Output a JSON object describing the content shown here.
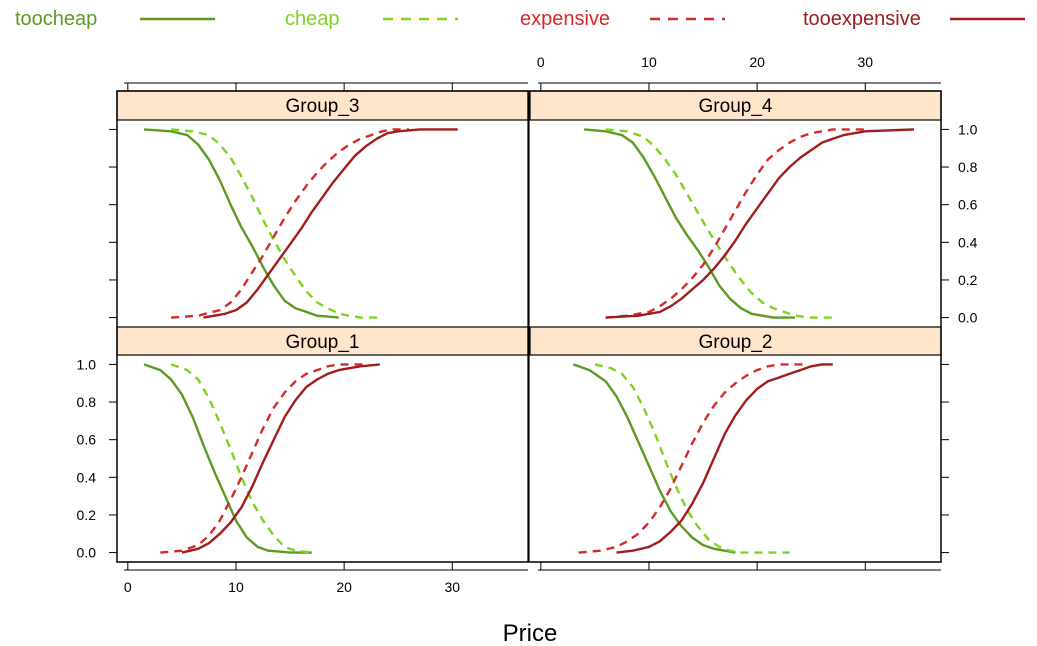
{
  "chart_data": {
    "type": "line",
    "xlabel": "Price",
    "ylabel": "",
    "xlim": [
      -1,
      37
    ],
    "ylim": [
      -0.05,
      1.05
    ],
    "x_ticks": [
      0,
      10,
      20,
      30
    ],
    "y_ticks": [
      0.0,
      0.2,
      0.4,
      0.6,
      0.8,
      1.0
    ],
    "y_tick_labels": [
      "0.0",
      "0.2",
      "0.4",
      "0.6",
      "0.8",
      "1.0"
    ],
    "legend_position": "top",
    "series": [
      {
        "name": "toocheap",
        "color": "#5c9a22",
        "dash": "solid"
      },
      {
        "name": "cheap",
        "color": "#7ed321",
        "dash": "dashed"
      },
      {
        "name": "expensive",
        "color": "#d42a2a",
        "dash": "dashed"
      },
      {
        "name": "tooexpensive",
        "color": "#a11d1d",
        "dash": "solid"
      }
    ],
    "panels": [
      {
        "title": "Group_3",
        "lines": [
          {
            "series": "toocheap",
            "x": [
              1.5,
              4,
              5.5,
              6.5,
              7.5,
              8.5,
              9.5,
              10.5,
              11.5,
              12.5,
              13.5,
              14.5,
              15.5,
              16.5,
              17.5,
              18.5,
              19.5
            ],
            "y": [
              1.0,
              0.99,
              0.97,
              0.92,
              0.84,
              0.73,
              0.6,
              0.48,
              0.38,
              0.27,
              0.17,
              0.09,
              0.05,
              0.03,
              0.01,
              0.005,
              0.0
            ]
          },
          {
            "series": "cheap",
            "x": [
              4,
              6,
              7.5,
              8.5,
              9.5,
              10.5,
              11.5,
              12.5,
              13.5,
              14.5,
              15.5,
              16.5,
              17.5,
              18.5,
              19.5,
              20.5,
              21.5,
              23.5
            ],
            "y": [
              1.0,
              0.99,
              0.97,
              0.92,
              0.85,
              0.75,
              0.64,
              0.52,
              0.41,
              0.31,
              0.22,
              0.14,
              0.08,
              0.05,
              0.02,
              0.01,
              0.0,
              0.0
            ]
          },
          {
            "series": "expensive",
            "x": [
              4,
              6.5,
              8.5,
              9.5,
              10.5,
              11.5,
              12.5,
              13.5,
              14.5,
              15.5,
              16.5,
              17.5,
              18.5,
              19.5,
              20.5,
              21.5,
              22.5,
              23.5,
              24.5,
              26
            ],
            "y": [
              0.0,
              0.01,
              0.04,
              0.08,
              0.15,
              0.24,
              0.33,
              0.43,
              0.53,
              0.62,
              0.7,
              0.77,
              0.83,
              0.88,
              0.92,
              0.95,
              0.97,
              0.99,
              1.0,
              1.0
            ]
          },
          {
            "series": "tooexpensive",
            "x": [
              7,
              8,
              9,
              10,
              11,
              12,
              13,
              14,
              15,
              16,
              17,
              18,
              19,
              20,
              21,
              22,
              23,
              24,
              25,
              27,
              30.5
            ],
            "y": [
              0.0,
              0.01,
              0.02,
              0.04,
              0.08,
              0.15,
              0.23,
              0.31,
              0.39,
              0.47,
              0.56,
              0.64,
              0.72,
              0.79,
              0.86,
              0.91,
              0.95,
              0.98,
              0.99,
              1.0,
              1.0
            ]
          }
        ]
      },
      {
        "title": "Group_4",
        "lines": [
          {
            "series": "toocheap",
            "x": [
              4,
              6,
              7.5,
              8.5,
              9.5,
              10.5,
              11.5,
              12.5,
              13.5,
              14.5,
              15.5,
              16.5,
              17.5,
              18.5,
              19.5,
              20.5,
              21.5,
              23.5
            ],
            "y": [
              1.0,
              0.99,
              0.97,
              0.93,
              0.85,
              0.75,
              0.64,
              0.53,
              0.44,
              0.36,
              0.27,
              0.17,
              0.1,
              0.05,
              0.02,
              0.01,
              0.0,
              0.0
            ]
          },
          {
            "series": "cheap",
            "x": [
              6,
              8,
              9.5,
              10.5,
              11.5,
              12.5,
              13.5,
              14.5,
              15.5,
              16.5,
              17.5,
              18.5,
              19.5,
              20.5,
              21.5,
              22.5,
              23.5,
              25,
              27
            ],
            "y": [
              1.0,
              0.99,
              0.96,
              0.91,
              0.84,
              0.76,
              0.66,
              0.56,
              0.46,
              0.37,
              0.28,
              0.2,
              0.13,
              0.08,
              0.05,
              0.03,
              0.01,
              0.0,
              0.0
            ]
          },
          {
            "series": "expensive",
            "x": [
              6,
              8,
              10,
              11,
              12,
              13,
              14,
              15,
              16,
              17,
              18,
              19,
              20,
              21,
              22,
              23,
              24,
              25,
              26,
              27,
              28,
              30
            ],
            "y": [
              0.0,
              0.01,
              0.03,
              0.06,
              0.1,
              0.15,
              0.21,
              0.28,
              0.37,
              0.47,
              0.57,
              0.67,
              0.76,
              0.84,
              0.89,
              0.93,
              0.96,
              0.98,
              0.99,
              1.0,
              1.0,
              1.0
            ]
          },
          {
            "series": "tooexpensive",
            "x": [
              6,
              9,
              11,
              12,
              13,
              14,
              15,
              16,
              17,
              18,
              19,
              20,
              21,
              22,
              23,
              24,
              25,
              26,
              27,
              28,
              30,
              34.5
            ],
            "y": [
              0.0,
              0.01,
              0.03,
              0.06,
              0.1,
              0.15,
              0.2,
              0.26,
              0.33,
              0.41,
              0.5,
              0.58,
              0.66,
              0.74,
              0.8,
              0.85,
              0.89,
              0.93,
              0.95,
              0.97,
              0.99,
              1.0
            ]
          }
        ]
      },
      {
        "title": "Group_1",
        "lines": [
          {
            "series": "toocheap",
            "x": [
              1.5,
              3,
              4,
              5,
              6,
              7,
              8,
              9,
              10,
              11,
              12,
              13,
              14,
              15,
              16,
              17
            ],
            "y": [
              1.0,
              0.97,
              0.92,
              0.84,
              0.72,
              0.57,
              0.43,
              0.3,
              0.17,
              0.08,
              0.03,
              0.01,
              0.005,
              0.0,
              0.0,
              0.0
            ]
          },
          {
            "series": "cheap",
            "x": [
              4,
              5.5,
              6.5,
              7.5,
              8.5,
              9.5,
              10.5,
              11.5,
              12.5,
              13.5,
              14.5,
              15.5,
              17
            ],
            "y": [
              1.0,
              0.97,
              0.92,
              0.82,
              0.69,
              0.55,
              0.4,
              0.27,
              0.17,
              0.09,
              0.03,
              0.01,
              0.0
            ]
          },
          {
            "series": "expensive",
            "x": [
              3,
              5,
              6.5,
              7.5,
              8.5,
              9.5,
              10.5,
              11.5,
              12.5,
              13.5,
              14.5,
              15.5,
              16.5,
              17.5,
              18.5,
              19.5,
              20.5,
              22
            ],
            "y": [
              0.0,
              0.01,
              0.04,
              0.09,
              0.17,
              0.28,
              0.4,
              0.53,
              0.66,
              0.77,
              0.85,
              0.91,
              0.95,
              0.97,
              0.99,
              1.0,
              1.0,
              1.0
            ]
          },
          {
            "series": "tooexpensive",
            "x": [
              5,
              6.5,
              7.5,
              8.5,
              9.5,
              10.5,
              11.5,
              12.5,
              13.5,
              14.5,
              15.5,
              16.5,
              17.5,
              18.5,
              19.5,
              20.5,
              21.5,
              23.3
            ],
            "y": [
              0.0,
              0.02,
              0.05,
              0.1,
              0.16,
              0.24,
              0.35,
              0.48,
              0.6,
              0.72,
              0.81,
              0.88,
              0.92,
              0.95,
              0.97,
              0.98,
              0.99,
              1.0
            ]
          }
        ]
      },
      {
        "title": "Group_2",
        "lines": [
          {
            "series": "toocheap",
            "x": [
              3,
              4.5,
              6,
              7,
              8,
              9,
              10,
              11,
              12,
              13,
              14,
              15,
              16,
              17,
              18
            ],
            "y": [
              1.0,
              0.97,
              0.91,
              0.83,
              0.72,
              0.59,
              0.46,
              0.33,
              0.22,
              0.14,
              0.08,
              0.04,
              0.02,
              0.01,
              0.0
            ]
          },
          {
            "series": "cheap",
            "x": [
              5,
              6.5,
              7.5,
              8.5,
              9.5,
              10.5,
              11.5,
              12.5,
              13.5,
              14.5,
              15.5,
              16.5,
              17.5,
              18.5,
              19.5,
              21,
              23
            ],
            "y": [
              1.0,
              0.98,
              0.95,
              0.88,
              0.77,
              0.64,
              0.49,
              0.35,
              0.23,
              0.14,
              0.07,
              0.03,
              0.01,
              0.0,
              0.0,
              0.0,
              0.0
            ]
          },
          {
            "series": "expensive",
            "x": [
              3.5,
              5.5,
              7,
              8,
              9,
              10,
              11,
              12,
              13,
              14,
              15,
              16,
              17,
              18,
              19,
              20,
              21,
              22,
              23,
              24.5
            ],
            "y": [
              0.0,
              0.01,
              0.03,
              0.06,
              0.1,
              0.16,
              0.24,
              0.34,
              0.46,
              0.58,
              0.69,
              0.78,
              0.85,
              0.9,
              0.94,
              0.97,
              0.99,
              1.0,
              1.0,
              1.0
            ]
          },
          {
            "series": "tooexpensive",
            "x": [
              7,
              8.5,
              10,
              11,
              12,
              13,
              14,
              15,
              16,
              17,
              18,
              19,
              20,
              21,
              22,
              23,
              24,
              25,
              26,
              27
            ],
            "y": [
              0.0,
              0.01,
              0.03,
              0.06,
              0.11,
              0.17,
              0.26,
              0.37,
              0.5,
              0.63,
              0.73,
              0.81,
              0.87,
              0.91,
              0.93,
              0.95,
              0.97,
              0.99,
              1.0,
              1.0
            ]
          }
        ]
      }
    ]
  }
}
